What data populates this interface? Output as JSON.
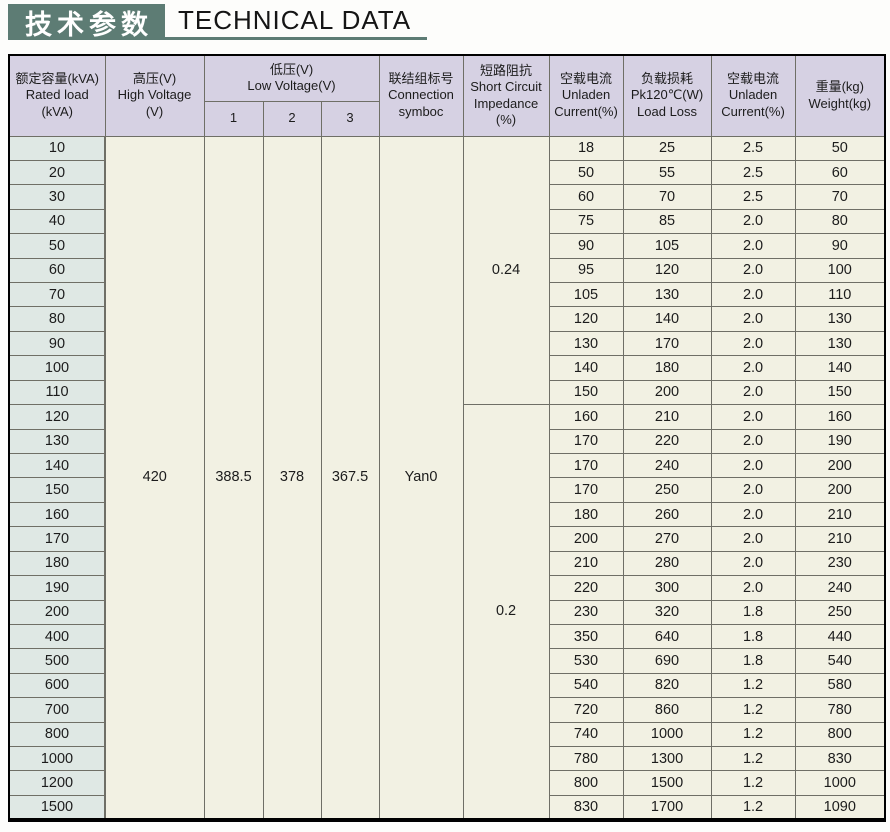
{
  "page": {
    "title_cn": "技术参数",
    "title_en": "TECHNICAL DATA",
    "colors": {
      "accent": "#5d7c74",
      "header_bg": "#d6d1e3",
      "row_label_bg": "#dfe8e4",
      "cell_bg": "#f2f1e3",
      "border": "#6f6f66"
    }
  },
  "table": {
    "headers": {
      "rated_load": "额定容量(kVA)\nRated load\n(kVA)",
      "high_voltage": "高压(V)\nHigh Voltage\n(V)",
      "low_voltage": "低压(V)\nLow Voltage(V)",
      "lv_sub": [
        "1",
        "2",
        "3"
      ],
      "connection": "联结组标号\nConnection\nsymboc",
      "impedance": "短路阻抗\nShort Circuit\nImpedance\n(%)",
      "unladen1": "空载电流\nUnladen\nCurrent(%)",
      "load_loss": "负载损耗\nPk120℃(W)\nLoad Loss",
      "unladen2": "空载电流\nUnladen\nCurrent(%)",
      "weight": "重量(kg)\nWeight(kg)"
    },
    "merged": {
      "high_voltage": "420",
      "lv1": "388.5",
      "lv2": "378",
      "lv3": "367.5",
      "connection": "Yan0"
    },
    "groups": [
      {
        "impedance": "0.24",
        "rows": [
          [
            "10",
            "18",
            "25",
            "2.5",
            "50"
          ],
          [
            "20",
            "50",
            "55",
            "2.5",
            "60"
          ],
          [
            "30",
            "60",
            "70",
            "2.5",
            "70"
          ],
          [
            "40",
            "75",
            "85",
            "2.0",
            "80"
          ],
          [
            "50",
            "90",
            "105",
            "2.0",
            "90"
          ],
          [
            "60",
            "95",
            "120",
            "2.0",
            "100"
          ],
          [
            "70",
            "105",
            "130",
            "2.0",
            "110"
          ],
          [
            "80",
            "120",
            "140",
            "2.0",
            "130"
          ],
          [
            "90",
            "130",
            "170",
            "2.0",
            "130"
          ],
          [
            "100",
            "140",
            "180",
            "2.0",
            "140"
          ],
          [
            "110",
            "150",
            "200",
            "2.0",
            "150"
          ]
        ]
      },
      {
        "impedance": "0.2",
        "rows": [
          [
            "120",
            "160",
            "210",
            "2.0",
            "160"
          ],
          [
            "130",
            "170",
            "220",
            "2.0",
            "190"
          ],
          [
            "140",
            "170",
            "240",
            "2.0",
            "200"
          ],
          [
            "150",
            "170",
            "250",
            "2.0",
            "200"
          ],
          [
            "160",
            "180",
            "260",
            "2.0",
            "210"
          ],
          [
            "170",
            "200",
            "270",
            "2.0",
            "210"
          ],
          [
            "180",
            "210",
            "280",
            "2.0",
            "230"
          ],
          [
            "190",
            "220",
            "300",
            "2.0",
            "240"
          ],
          [
            "200",
            "230",
            "320",
            "1.8",
            "250"
          ],
          [
            "400",
            "350",
            "640",
            "1.8",
            "440"
          ],
          [
            "500",
            "530",
            "690",
            "1.8",
            "540"
          ],
          [
            "600",
            "540",
            "820",
            "1.2",
            "580"
          ],
          [
            "700",
            "720",
            "860",
            "1.2",
            "780"
          ],
          [
            "800",
            "740",
            "1000",
            "1.2",
            "800"
          ],
          [
            "1000",
            "780",
            "1300",
            "1.2",
            "830"
          ],
          [
            "1200",
            "800",
            "1500",
            "1.2",
            "1000"
          ],
          [
            "1500",
            "830",
            "1700",
            "1.2",
            "1090"
          ]
        ]
      }
    ]
  }
}
